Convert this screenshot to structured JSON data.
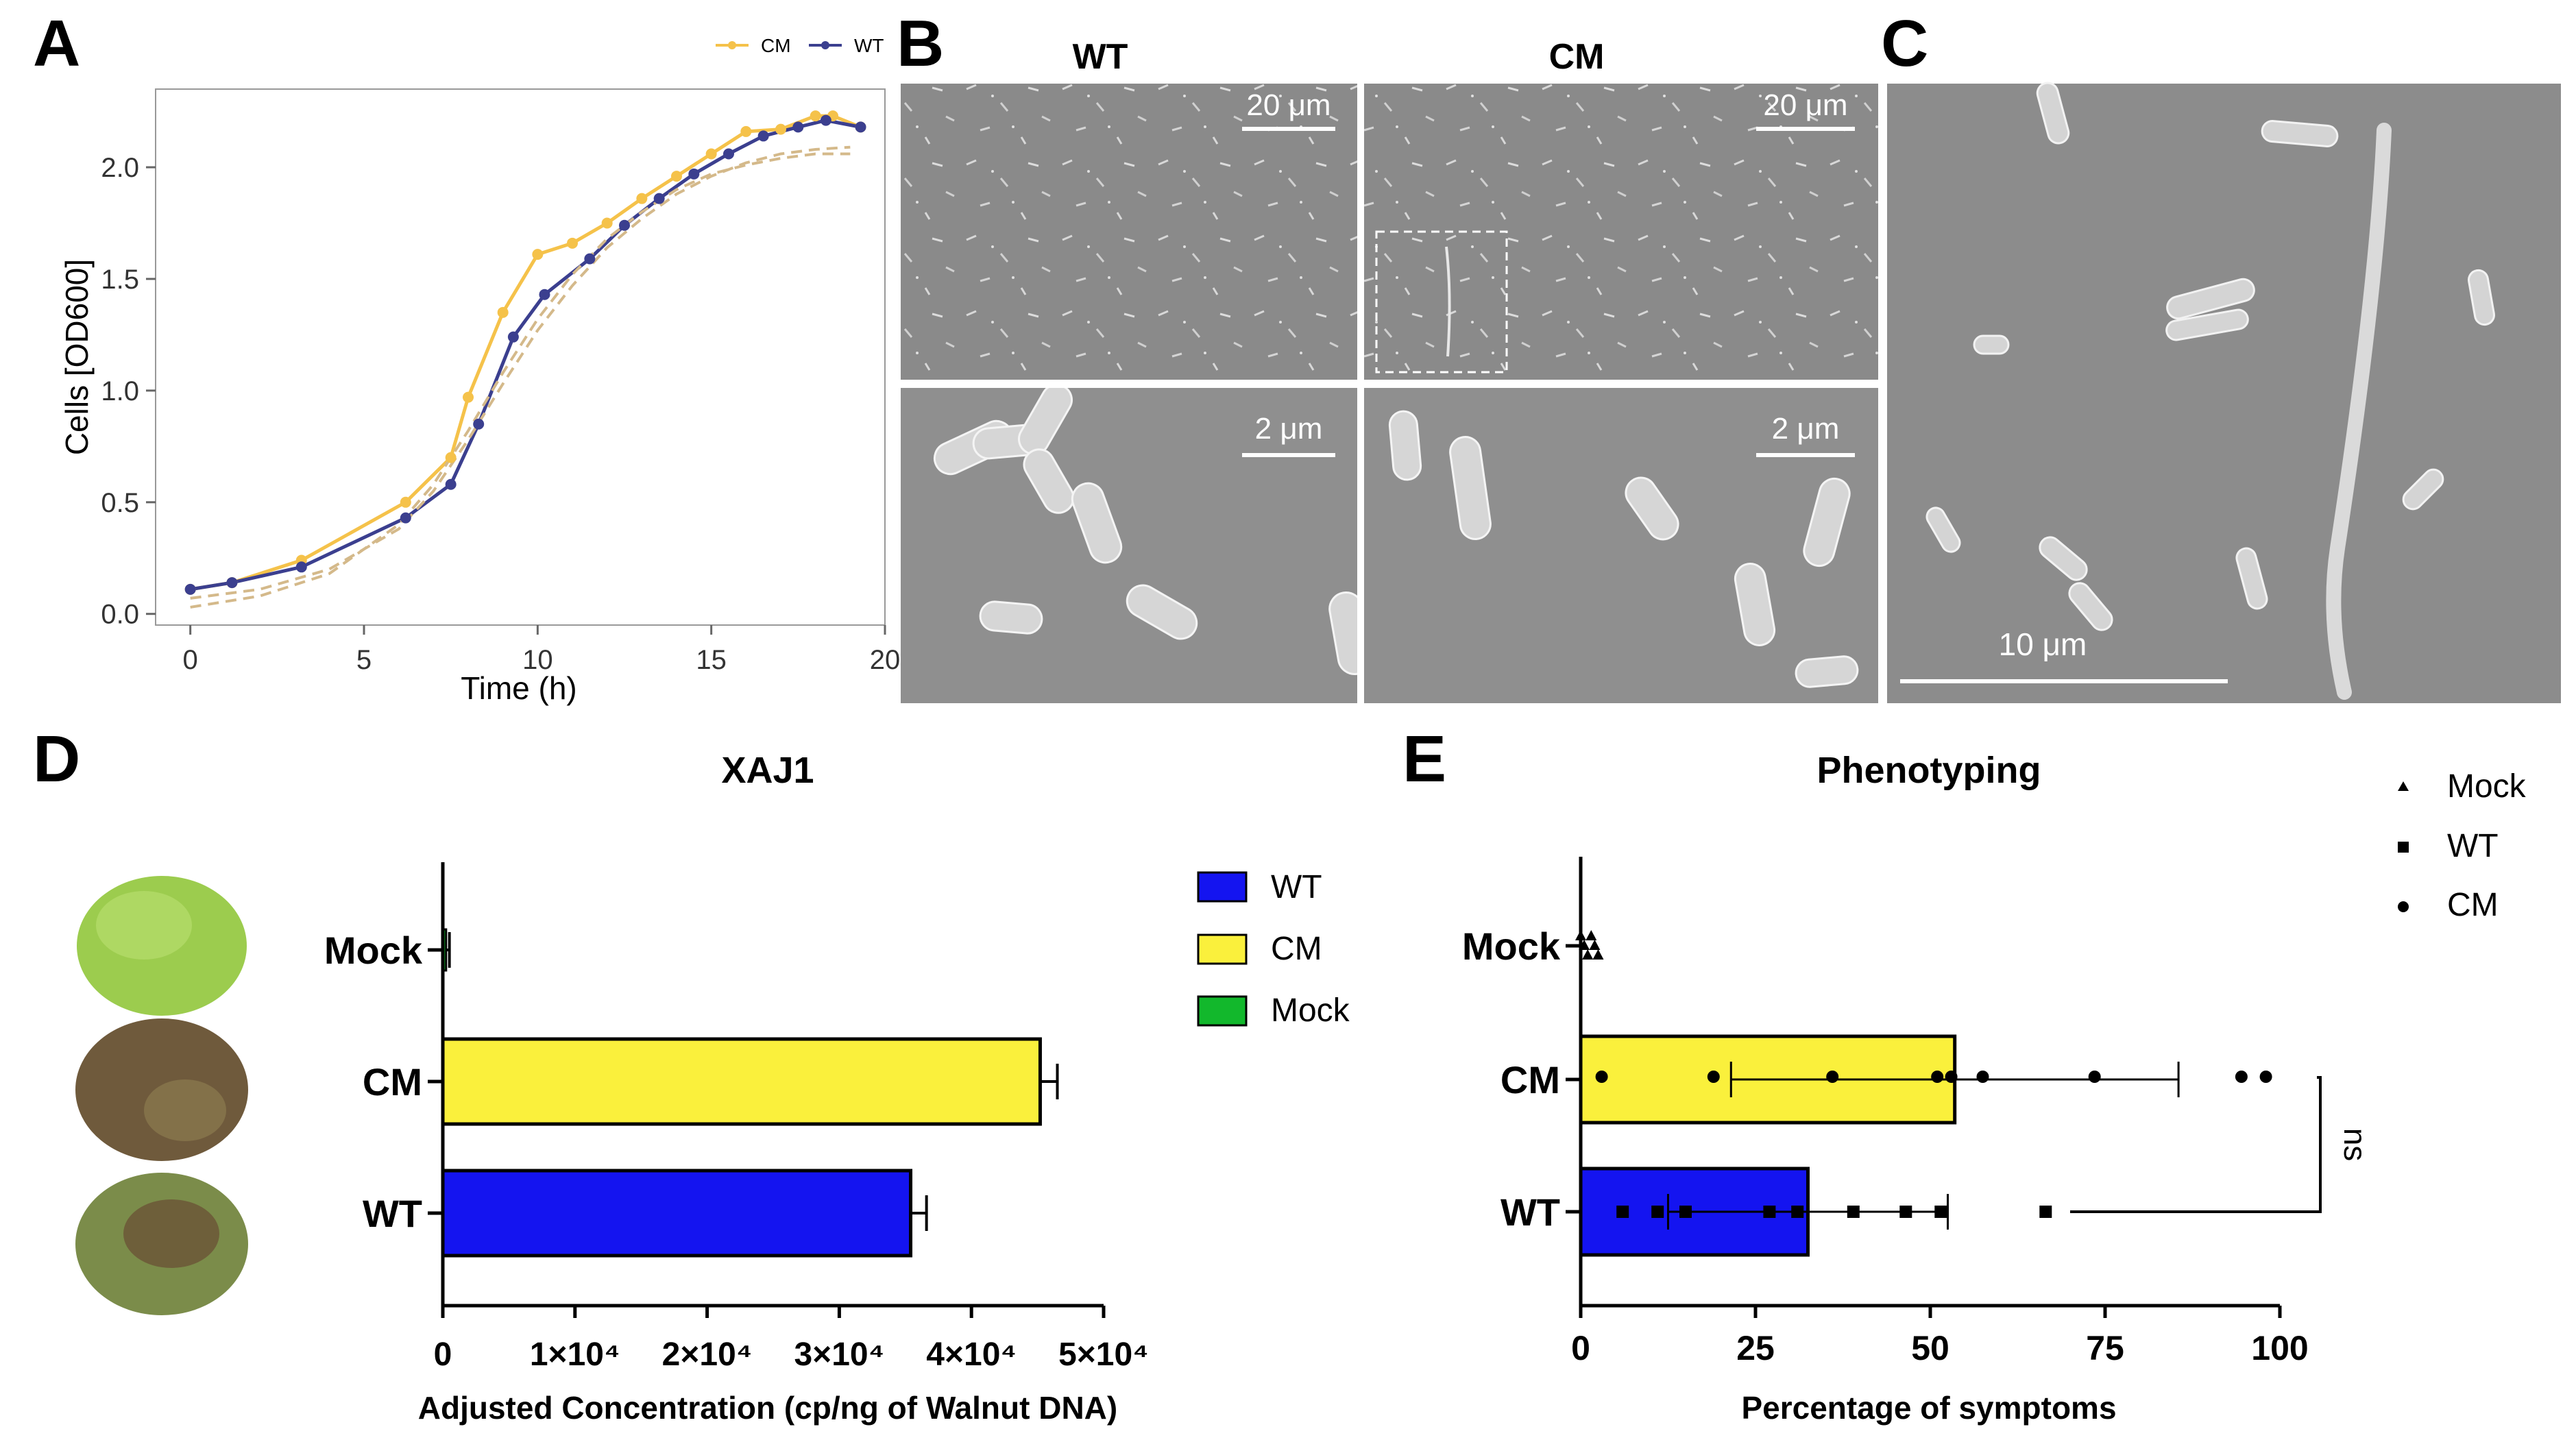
{
  "panels": {
    "A": "A",
    "B": "B",
    "C": "C",
    "D": "D",
    "E": "E"
  },
  "colors": {
    "cm_line": "#F5C24A",
    "wt_line": "#3B3F8F",
    "fit_line": "#D4B98A",
    "wt_bar": "#1414F0",
    "cm_bar": "#FAF03C",
    "mock_bar": "#12B82C",
    "sem_bg": "#8E8E8E"
  },
  "sem": {
    "wt_label": "WT",
    "cm_label": "CM",
    "scale_20um": "20 μm",
    "scale_2um": "2 μm",
    "scale_10um": "10 μm"
  },
  "chart_data": [
    {
      "id": "A",
      "type": "line",
      "title": "",
      "xlabel": "Time (h)",
      "ylabel": "Cells [OD600]",
      "xlim": [
        -1,
        20
      ],
      "ylim": [
        -0.05,
        2.35
      ],
      "xticks": [
        0,
        5,
        10,
        15,
        20
      ],
      "yticks": [
        0.0,
        0.5,
        1.0,
        1.5,
        2.0
      ],
      "ytick_labels": [
        "0.0",
        "0.5",
        "1.0",
        "1.5",
        "2.0"
      ],
      "legend": {
        "position": "top-right",
        "entries": [
          "CM",
          "WT"
        ]
      },
      "series": [
        {
          "name": "CM",
          "color_key": "cm_line",
          "x": [
            0,
            1.2,
            3.2,
            6.2,
            7.5,
            8,
            9,
            10,
            11,
            12,
            13,
            14,
            15,
            16,
            17,
            18,
            18.5,
            19.3
          ],
          "y": [
            0.11,
            0.14,
            0.24,
            0.5,
            0.7,
            0.97,
            1.35,
            1.61,
            1.66,
            1.75,
            1.86,
            1.96,
            2.06,
            2.16,
            2.17,
            2.23,
            2.23,
            2.18
          ]
        },
        {
          "name": "WT",
          "color_key": "wt_line",
          "x": [
            0,
            1.2,
            3.2,
            6.2,
            7.5,
            8.3,
            9.3,
            10.2,
            11.5,
            12.5,
            13.5,
            14.5,
            15.5,
            16.5,
            17.5,
            18.3,
            19.3
          ],
          "y": [
            0.11,
            0.14,
            0.21,
            0.43,
            0.58,
            0.85,
            1.24,
            1.43,
            1.59,
            1.74,
            1.86,
            1.97,
            2.06,
            2.14,
            2.18,
            2.21,
            2.18
          ]
        },
        {
          "name": "CM fit",
          "color_key": "fit_line",
          "dashed": true,
          "x": [
            0,
            2,
            4,
            6,
            7,
            8,
            9,
            10,
            11,
            12,
            13,
            14,
            15,
            16,
            17,
            18,
            19
          ],
          "y": [
            0.03,
            0.08,
            0.18,
            0.4,
            0.58,
            0.82,
            1.08,
            1.32,
            1.52,
            1.68,
            1.8,
            1.9,
            1.97,
            2.01,
            2.04,
            2.06,
            2.06
          ]
        },
        {
          "name": "WT fit",
          "color_key": "fit_line",
          "dashed": true,
          "x": [
            0,
            2,
            4,
            6,
            7,
            8,
            9,
            10,
            11,
            12,
            13,
            14,
            15,
            16,
            17,
            18,
            19
          ],
          "y": [
            0.07,
            0.11,
            0.2,
            0.38,
            0.55,
            0.78,
            1.03,
            1.27,
            1.47,
            1.64,
            1.77,
            1.88,
            1.96,
            2.02,
            2.06,
            2.08,
            2.09
          ]
        }
      ]
    },
    {
      "id": "D",
      "type": "bar",
      "orientation": "horizontal",
      "title": "XAJ1",
      "xlabel": "Adjusted Concentration (cp/ng of Walnut DNA)",
      "ylabel": "",
      "xlim": [
        0,
        50000
      ],
      "xticks": [
        0,
        10000,
        20000,
        30000,
        40000,
        50000
      ],
      "xtick_labels": [
        "0",
        "1×10⁴",
        "2×10⁴",
        "3×10⁴",
        "4×10⁴",
        "5×10⁴"
      ],
      "categories": [
        "Mock",
        "CM",
        "WT"
      ],
      "values": [
        250,
        45200,
        35400
      ],
      "errors": [
        250,
        1300,
        1200
      ],
      "legend": {
        "position": "top-right",
        "entries": [
          "WT",
          "CM",
          "Mock"
        ]
      }
    },
    {
      "id": "E",
      "type": "bar",
      "orientation": "horizontal",
      "title": "Phenotyping",
      "xlabel": "Percentage of symptoms",
      "ylabel": "",
      "xlim": [
        0,
        100
      ],
      "xticks": [
        0,
        25,
        50,
        75,
        100
      ],
      "xtick_labels": [
        "0",
        "25",
        "50",
        "75",
        "100"
      ],
      "categories": [
        "Mock",
        "CM",
        "WT"
      ],
      "values": [
        0.3,
        53.5,
        32.5
      ],
      "sd": [
        0.5,
        32,
        20
      ],
      "points": {
        "Mock": [
          0,
          0.5,
          1,
          1.5,
          2,
          2.5
        ],
        "CM": [
          3,
          19,
          36,
          51,
          53,
          57.5,
          73.5,
          94.5,
          98
        ],
        "WT": [
          6,
          11,
          15,
          27,
          31,
          39,
          46.5,
          51.5,
          66.5
        ]
      },
      "significance": {
        "label": "ns",
        "between": [
          "CM",
          "WT"
        ]
      },
      "legend": {
        "position": "top-right",
        "entries": [
          "Mock",
          "WT",
          "CM"
        ]
      }
    }
  ]
}
